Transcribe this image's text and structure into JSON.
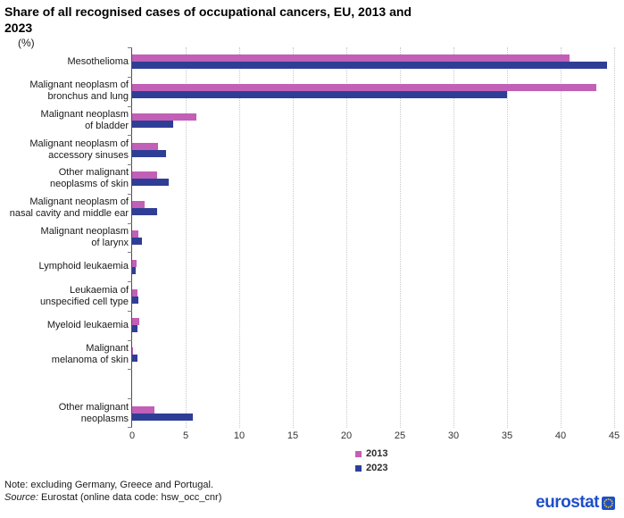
{
  "header": {
    "title_line1": "Share of all recognised cases of occupational cancers, EU, 2013 and",
    "title_line2": "2023",
    "unit_label": "(%)"
  },
  "chart_data": {
    "type": "bar",
    "orientation": "horizontal",
    "title": "Share of all recognised cases of occupational cancers, EU, 2013 and 2023",
    "xlabel": "(%)",
    "xlim": [
      0,
      45
    ],
    "xticks": [
      0,
      5,
      10,
      15,
      20,
      25,
      30,
      35,
      40,
      45
    ],
    "grid": true,
    "legend_position": "bottom-center",
    "categories": [
      "Mesothelioma",
      "Malignant neoplasm of\nbronchus and lung",
      "Malignant neoplasm\nof bladder",
      "Malignant neoplasm of\naccessory sinuses",
      "Other malignant\nneoplasms of skin",
      "Malignant neoplasm of\nnasal cavity and middle ear",
      "Malignant neoplasm\nof larynx",
      "Lymphoid leukaemia",
      "Leukaemia of\nunspecified cell type",
      "Myeloid leukaemia",
      "Malignant\nmelanoma of skin",
      "Other malignant\nneoplasms"
    ],
    "spacer_after_index": 10,
    "series": [
      {
        "name": "2013",
        "color": "#c25fb6",
        "values": [
          40.8,
          43.3,
          6.0,
          2.4,
          2.3,
          1.2,
          0.6,
          0.4,
          0.5,
          0.7,
          0.1,
          2.1
        ]
      },
      {
        "name": "2023",
        "color": "#2e3e97",
        "values": [
          44.3,
          35.0,
          3.8,
          3.2,
          3.4,
          2.3,
          0.9,
          0.3,
          0.6,
          0.5,
          0.5,
          5.7
        ]
      }
    ]
  },
  "footer": {
    "note": "Note: excluding Germany, Greece and Portugal.",
    "source_prefix": "Source:",
    "source_text": " Eurostat (online data code: hsw_occ_cnr)",
    "logo_text": "eurostat"
  },
  "colors": {
    "bar_2013": "#c25fb6",
    "bar_2023": "#2e3e97",
    "logo_blue": "#1d4fc9",
    "eu_flag_blue": "#1e50c8",
    "eu_star_yellow": "#ffcc00"
  }
}
